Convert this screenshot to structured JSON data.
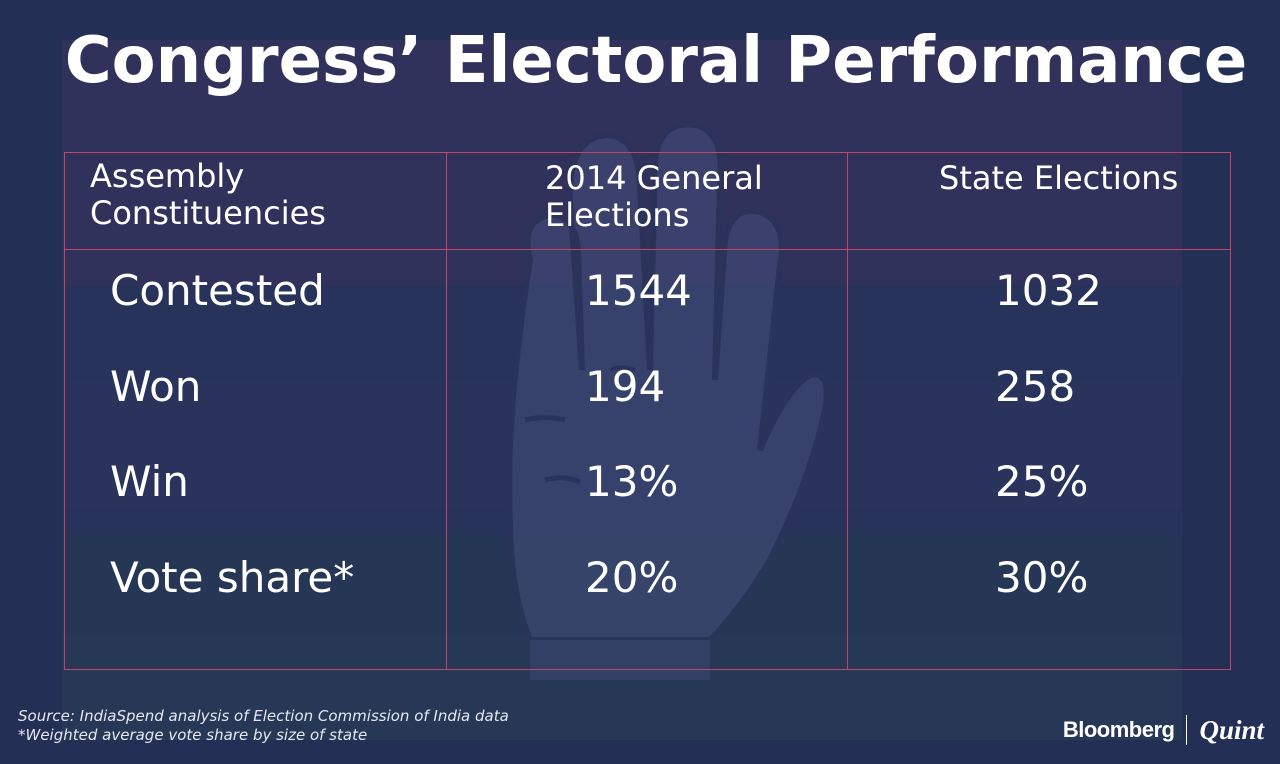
{
  "title": "Congress’ Electoral Performance",
  "chart_data": {
    "type": "table",
    "columns": [
      "Assembly Constituencies",
      "2014 General Elections",
      "State Elections"
    ],
    "rows": [
      {
        "label": "Contested",
        "general_2014": "1544",
        "state": "1032"
      },
      {
        "label": "Won",
        "general_2014": "194",
        "state": "258"
      },
      {
        "label": "Win",
        "general_2014": "13%",
        "state": "25%"
      },
      {
        "label": "Vote share*",
        "general_2014": "20%",
        "state": "30%"
      }
    ]
  },
  "table_header": {
    "col1_line1": "Assembly",
    "col1_line2": "Constituencies",
    "col2_line1": "2014 General",
    "col2_line2": "Elections",
    "col3": "State Elections"
  },
  "footer": {
    "source": "Source: IndiaSpend analysis of Election Commission of India data",
    "note": "*Weighted average vote share by size of state"
  },
  "brand": {
    "left": "Bloomberg",
    "right": "Quint"
  },
  "colors": {
    "background": "#242f55",
    "grid_line": "#c34566",
    "text": "#ffffff"
  },
  "icons": [
    "congress-hand-icon"
  ]
}
